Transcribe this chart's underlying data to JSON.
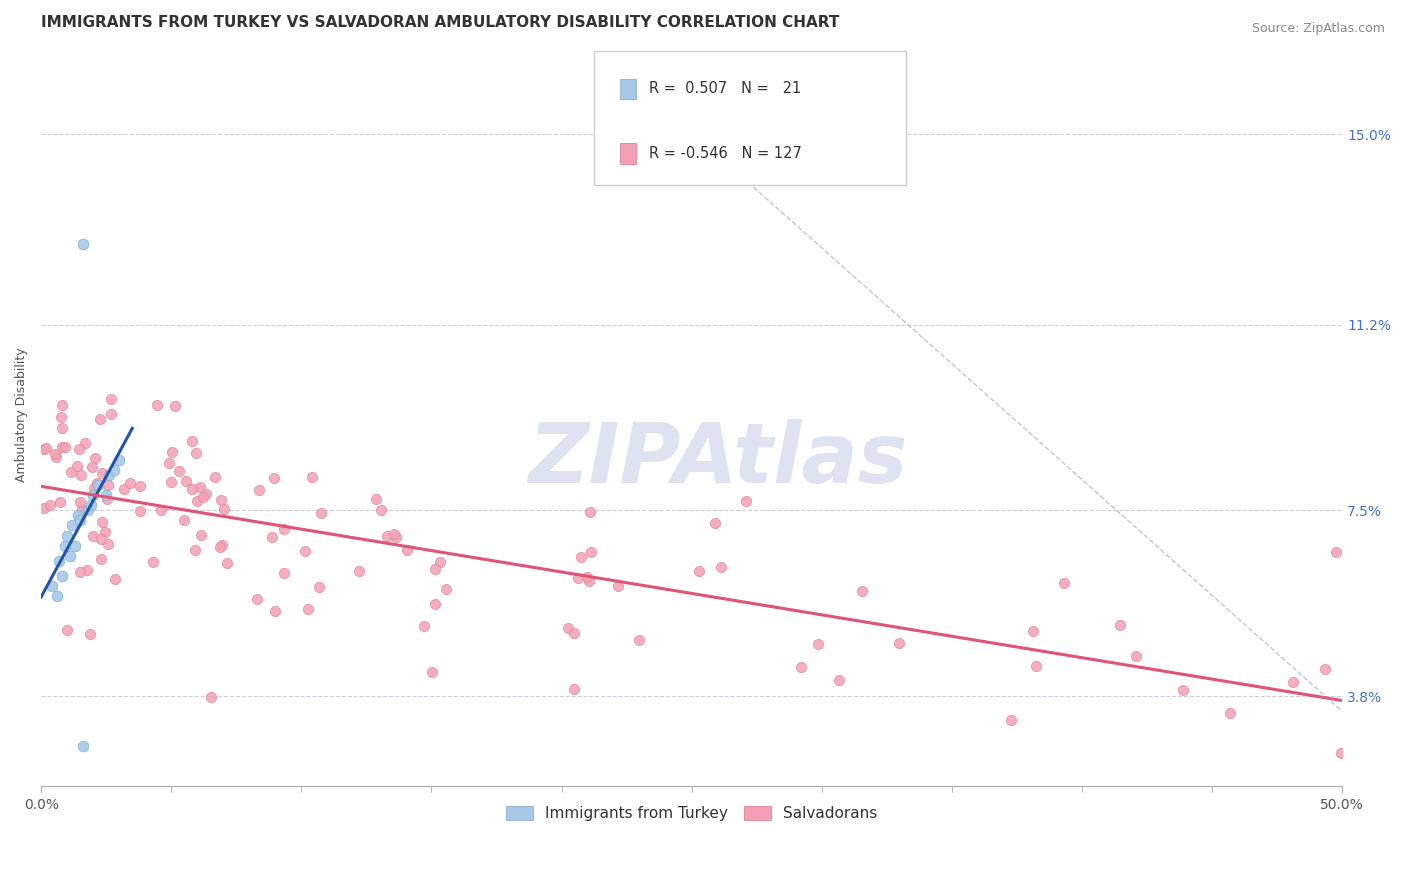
{
  "title": "IMMIGRANTS FROM TURKEY VS SALVADORAN AMBULATORY DISABILITY CORRELATION CHART",
  "source": "Source: ZipAtlas.com",
  "ylabel": "Ambulatory Disability",
  "xlim": [
    0.0,
    0.5
  ],
  "ylim": [
    0.02,
    0.168
  ],
  "yticks": [
    0.038,
    0.075,
    0.112,
    0.15
  ],
  "ytick_labels": [
    "3.8%",
    "7.5%",
    "11.2%",
    "15.0%"
  ],
  "xtick_left_label": "0.0%",
  "xtick_right_label": "50.0%",
  "series1_color": "#A8C8E8",
  "series2_color": "#F4A0B4",
  "trendline1_color": "#2255AA",
  "trendline2_color": "#E05575",
  "R1": 0.507,
  "N1": 21,
  "R2": -0.546,
  "N2": 127,
  "legend_label1": "Immigrants from Turkey",
  "legend_label2": "Salvadorans",
  "watermark": "ZIPAtlas",
  "background_color": "#ffffff",
  "grid_color": "#c8c8d8",
  "title_fontsize": 11,
  "axis_label_fontsize": 9,
  "tick_fontsize": 10,
  "watermark_fontsize": 60,
  "watermark_color": "#c8d0e8",
  "watermark_alpha": 0.6,
  "seed1": 10,
  "seed2": 20
}
